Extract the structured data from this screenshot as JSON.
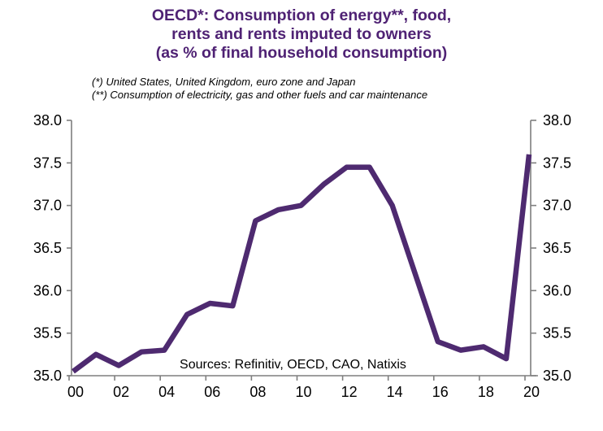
{
  "title": {
    "lines": [
      "OECD*: Consumption of energy**, food,",
      "rents and rents imputed to owners",
      "(as % of final household consumption)"
    ]
  },
  "footnotes": [
    "(*) United States, United Kingdom, euro zone and Japan",
    "(**) Consumption of electricity, gas and other fuels and car maintenance"
  ],
  "source_note": "Sources: Refinitiv, OECD, CAO, Natixis",
  "colors": {
    "title": "#4f2274",
    "line": "#4e2a70",
    "axis": "#7f7f7f",
    "text": "#000000",
    "background": "#ffffff"
  },
  "chart_data": {
    "type": "line",
    "title": "OECD*: Consumption of energy**, food, rents and rents imputed to owners (as % of final household consumption)",
    "x": [
      2000,
      2001,
      2002,
      2003,
      2004,
      2005,
      2006,
      2007,
      2008,
      2009,
      2010,
      2011,
      2012,
      2013,
      2014,
      2015,
      2016,
      2017,
      2018,
      2019,
      2020
    ],
    "x_tick_labels": [
      "00",
      "02",
      "04",
      "06",
      "08",
      "10",
      "12",
      "14",
      "16",
      "18",
      "20"
    ],
    "ylim": [
      35.0,
      38.0
    ],
    "y_ticks": [
      35.0,
      35.5,
      36.0,
      36.5,
      37.0,
      37.5,
      38.0
    ],
    "y_tick_labels": [
      "35.0",
      "35.5",
      "36.0",
      "36.5",
      "37.0",
      "37.5",
      "38.0"
    ],
    "grid": false,
    "legend": "none",
    "dual_y_axis": true,
    "series": [
      {
        "name": "OECD energy, food and rents share of final household consumption (%)",
        "color": "#4e2a70",
        "values": [
          35.05,
          35.25,
          35.12,
          35.28,
          35.3,
          35.72,
          35.85,
          35.82,
          36.82,
          36.95,
          37.0,
          37.25,
          37.45,
          37.45,
          37.0,
          36.2,
          35.4,
          35.3,
          35.34,
          35.2,
          37.6
        ]
      }
    ]
  }
}
